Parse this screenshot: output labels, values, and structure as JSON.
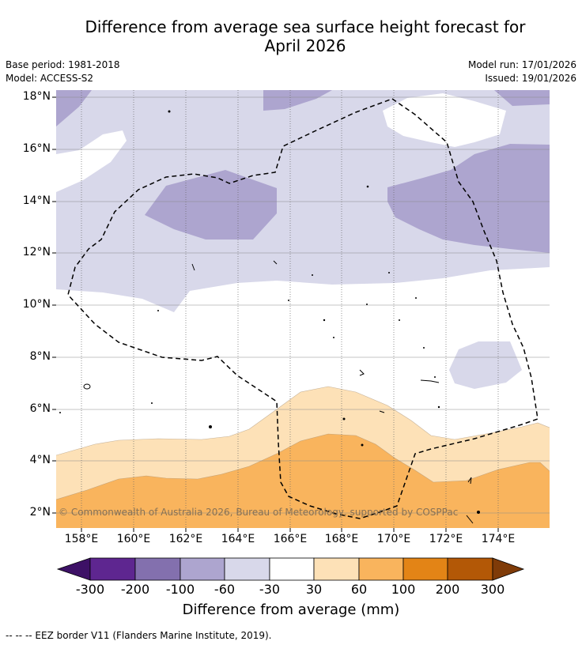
{
  "title": "Difference from average sea surface height forecast for April 2026",
  "title_line1": "Difference from average sea surface height forecast for",
  "title_line2": "April 2026",
  "base_period": "Base period: 1981-2018",
  "model": "Model: ACCESS-S2",
  "model_run": "Model run: 17/01/2026",
  "issued": "Issued: 19/01/2026",
  "copyright": "© Commonwealth of Australia 2026, Bureau of Meteorology, supported by COSPPac",
  "footnote": "--  --  -- EEZ border V11 (Flanders Marine Institute, 2019).",
  "axes": {
    "lat_labels": [
      "18°N",
      "16°N",
      "14°N",
      "12°N",
      "10°N",
      "8°N",
      "6°N",
      "4°N",
      "2°N"
    ],
    "lon_labels": [
      "158°E",
      "160°E",
      "162°E",
      "164°E",
      "166°E",
      "168°E",
      "170°E",
      "172°E",
      "174°E"
    ]
  },
  "colorbar": {
    "title": "Difference from average (mm)",
    "tick_labels": [
      "-300",
      "-200",
      "-100",
      "-60",
      "-30",
      "30",
      "60",
      "100",
      "200",
      "300"
    ],
    "colors": [
      "#3d1166",
      "#5e2690",
      "#8370ae",
      "#ada5cf",
      "#d8d8ea",
      "#ffffff",
      "#fde1b7",
      "#f9b45d",
      "#e38416",
      "#b35806",
      "#7f3b08"
    ]
  }
}
